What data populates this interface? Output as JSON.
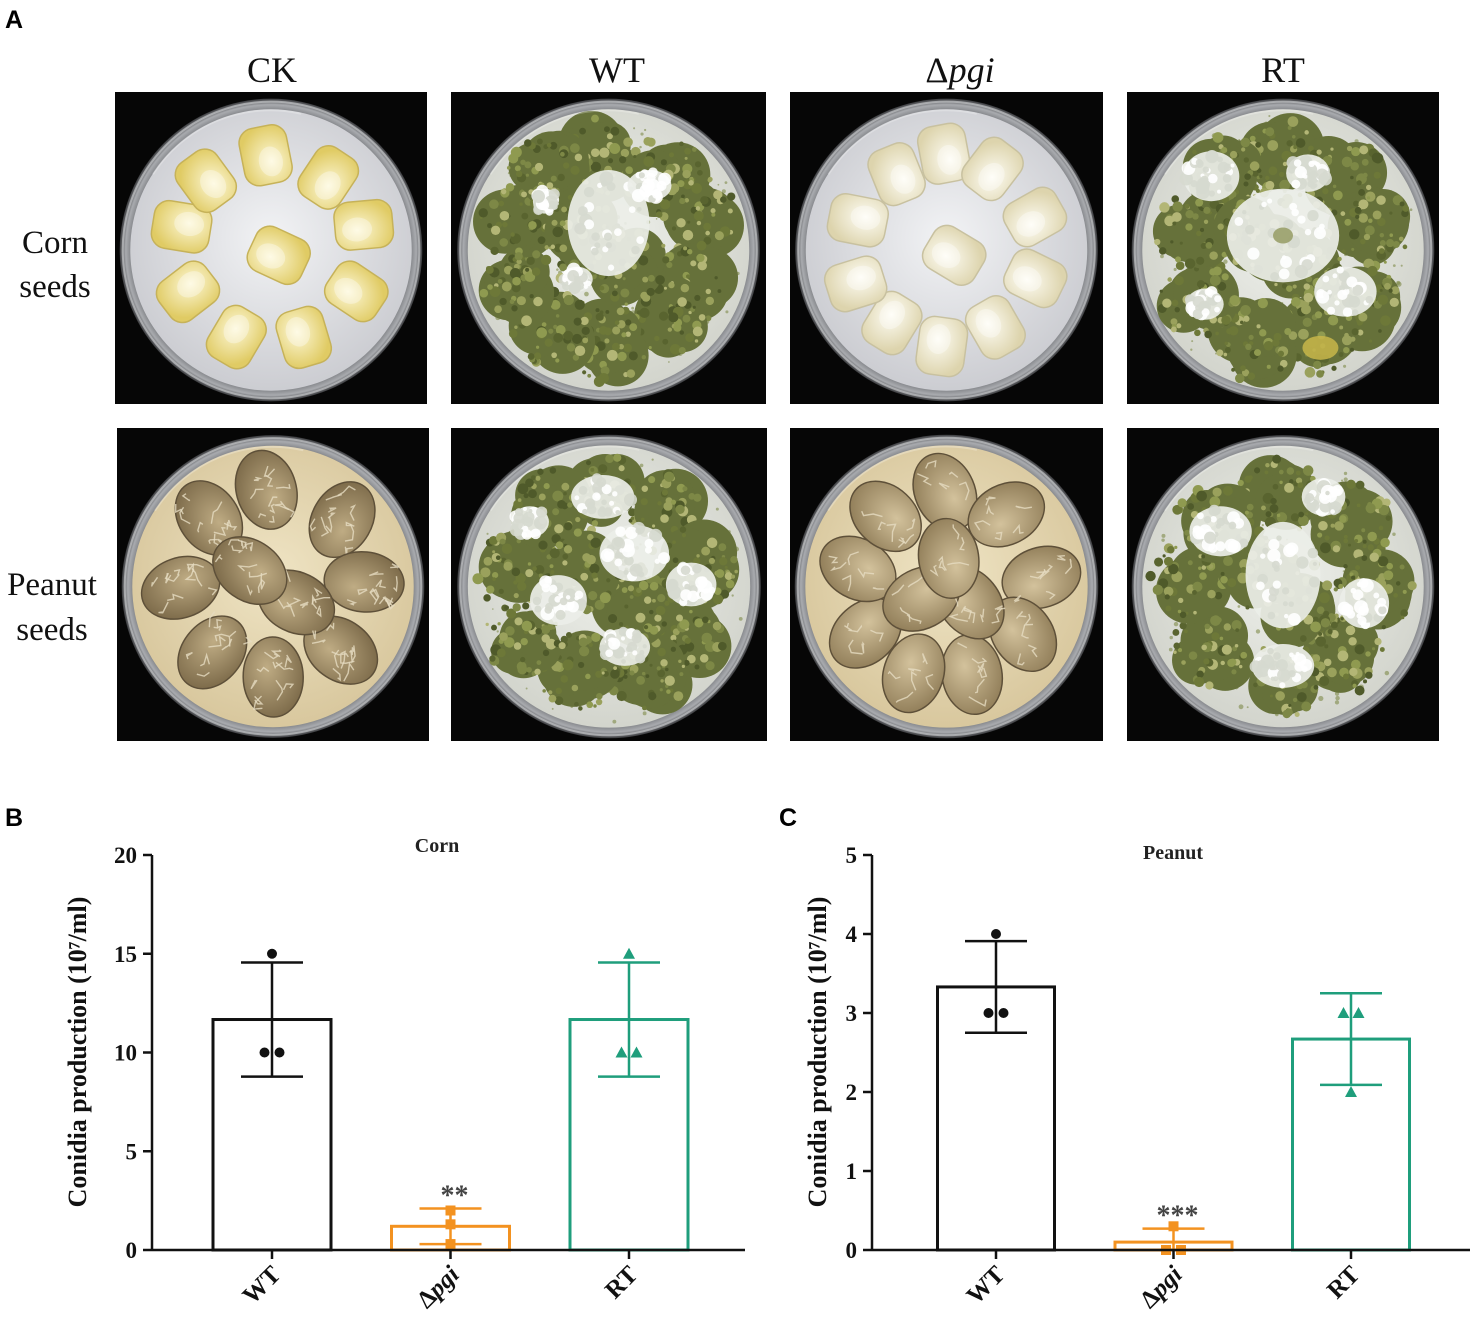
{
  "figure": {
    "panel_labels": [
      "A",
      "B",
      "C"
    ]
  },
  "panel_a": {
    "columns": [
      "CK",
      "WT",
      "Δpgi",
      "RT"
    ],
    "rows": [
      {
        "lines": [
          "Corn",
          "seeds"
        ]
      },
      {
        "lines": [
          "Peanut",
          "seeds"
        ]
      }
    ]
  },
  "chart_data": [
    {
      "type": "bar",
      "title": "Corn",
      "ylabel": "Conidia production (10⁷/ml)",
      "categories": [
        "WT",
        "Δpgi",
        "RT"
      ],
      "values": [
        11.67,
        1.2,
        11.67
      ],
      "error": [
        2.89,
        0.9,
        2.89
      ],
      "points": [
        [
          15,
          10,
          10
        ],
        [
          2,
          1.3,
          0.3
        ],
        [
          15,
          10,
          10
        ]
      ],
      "significance": [
        "",
        "**",
        ""
      ],
      "ylim": [
        0,
        20
      ],
      "yticks": [
        0,
        5,
        10,
        15,
        20
      ],
      "colors": [
        "#111111",
        "#f39220",
        "#1f9e7c"
      ],
      "markers": [
        "circle",
        "square",
        "triangle"
      ],
      "grid": false,
      "legend": false
    },
    {
      "type": "bar",
      "title": "Peanut",
      "ylabel": "Conidia production (10⁷/ml)",
      "categories": [
        "WT",
        "Δpgi",
        "RT"
      ],
      "values": [
        3.33,
        0.1,
        2.67
      ],
      "error": [
        0.58,
        0.17,
        0.58
      ],
      "points": [
        [
          4,
          3,
          3
        ],
        [
          0.3,
          0,
          0
        ],
        [
          3,
          3,
          2
        ]
      ],
      "significance": [
        "",
        "***",
        ""
      ],
      "ylim": [
        0,
        5
      ],
      "yticks": [
        0,
        1,
        2,
        3,
        4,
        5
      ],
      "colors": [
        "#111111",
        "#f39220",
        "#1f9e7c"
      ],
      "markers": [
        "circle",
        "square",
        "triangle"
      ],
      "grid": false,
      "legend": false
    }
  ]
}
